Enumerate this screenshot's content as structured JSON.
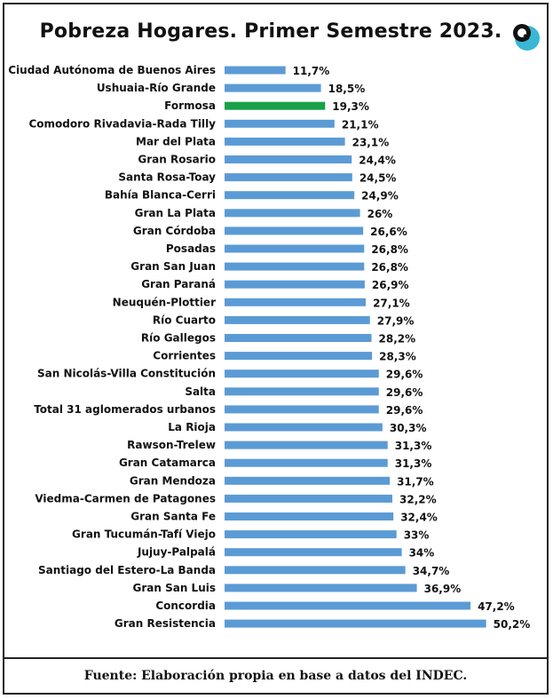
{
  "header": {
    "title": "Pobreza Hogares. Primer Semestre 2023.",
    "logo_icon": "q-search-logo-icon"
  },
  "footer": {
    "source": "Fuente: Elaboración propia en base a datos del INDEC."
  },
  "colors": {
    "bar": "#5b9bd5",
    "highlight": "#1aa04a",
    "logo": "#3ab7d4"
  },
  "chart_data": {
    "type": "bar",
    "orientation": "horizontal",
    "title": "Pobreza Hogares. Primer Semestre 2023.",
    "xlim": [
      0,
      55
    ],
    "grid": false,
    "highlight": "Formosa",
    "categories": [
      "Ciudad Autónoma de Buenos Aires",
      "Ushuaia-Río Grande",
      "Formosa",
      "Comodoro Rivadavia-Rada Tilly",
      "Mar del Plata",
      "Gran Rosario",
      "Santa Rosa-Toay",
      "Bahía Blanca-Cerri",
      "Gran La Plata",
      "Gran Córdoba",
      "Posadas",
      "Gran San Juan",
      "Gran Paraná",
      "Neuquén-Plottier",
      "Río Cuarto",
      "Río Gallegos",
      "Corrientes",
      "San Nicolás-Villa Constitución",
      "Salta",
      "Total 31 aglomerados urbanos",
      "La Rioja",
      "Rawson-Trelew",
      "Gran Catamarca",
      "Gran Mendoza",
      "Viedma-Carmen de Patagones",
      "Gran Santa Fe",
      "Gran Tucumán-Tafí Viejo",
      "Jujuy-Palpalá",
      "Santiago del Estero-La Banda",
      "Gran San Luis",
      "Concordia",
      "Gran Resistencia"
    ],
    "values": [
      11.7,
      18.5,
      19.3,
      21.1,
      23.1,
      24.4,
      24.5,
      24.9,
      26,
      26.6,
      26.8,
      26.8,
      26.9,
      27.1,
      27.9,
      28.2,
      28.3,
      29.6,
      29.6,
      29.6,
      30.3,
      31.3,
      31.3,
      31.7,
      32.2,
      32.4,
      33,
      34,
      34.7,
      36.9,
      47.2,
      50.2
    ],
    "labels": [
      "11,7%",
      "18,5%",
      "19,3%",
      "21,1%",
      "23,1%",
      "24,4%",
      "24,5%",
      "24,9%",
      "26%",
      "26,6%",
      "26,8%",
      "26,8%",
      "26,9%",
      "27,1%",
      "27,9%",
      "28,2%",
      "28,3%",
      "29,6%",
      "29,6%",
      "29,6%",
      "30,3%",
      "31,3%",
      "31,3%",
      "31,7%",
      "32,2%",
      "32,4%",
      "33%",
      "34%",
      "34,7%",
      "36,9%",
      "47,2%",
      "50,2%"
    ]
  }
}
